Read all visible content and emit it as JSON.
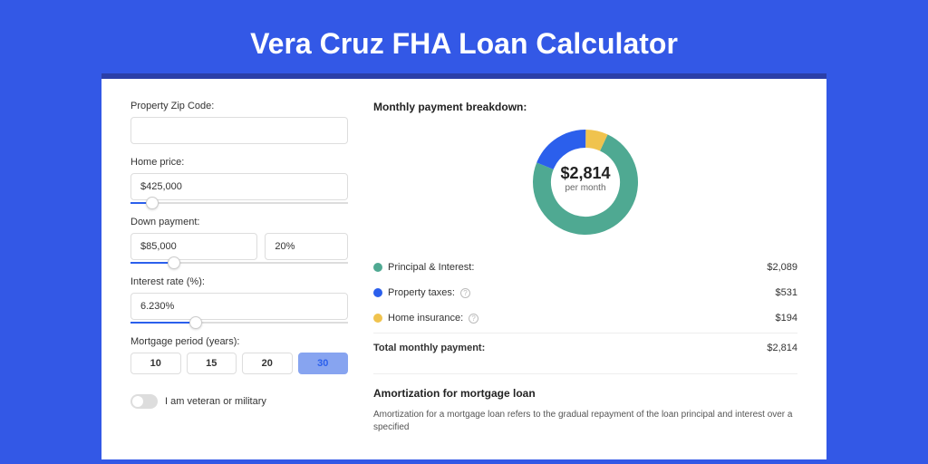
{
  "title": "Vera Cruz FHA Loan Calculator",
  "form": {
    "zip_label": "Property Zip Code:",
    "zip_value": "",
    "home_price_label": "Home price:",
    "home_price_value": "$425,000",
    "home_price_slider_pct": 10,
    "down_payment_label": "Down payment:",
    "down_payment_value": "$85,000",
    "down_payment_pct_value": "20%",
    "down_payment_slider_pct": 20,
    "interest_label": "Interest rate (%):",
    "interest_value": "6.230%",
    "interest_slider_pct": 30,
    "period_label": "Mortgage period (years):",
    "periods": [
      "10",
      "15",
      "20",
      "30"
    ],
    "period_active_index": 3,
    "veteran_label": "I am veteran or military",
    "veteran_on": false
  },
  "breakdown": {
    "title": "Monthly payment breakdown:",
    "center_amount": "$2,814",
    "center_sub": "per month",
    "slices": [
      {
        "label": "Principal & Interest:",
        "value": "$2,089",
        "color": "#4fa992",
        "pct": 74,
        "help": false
      },
      {
        "label": "Property taxes:",
        "value": "$531",
        "color": "#2b5fec",
        "pct": 19,
        "help": true
      },
      {
        "label": "Home insurance:",
        "value": "$194",
        "color": "#f0c34e",
        "pct": 7,
        "help": true
      }
    ],
    "total_label": "Total monthly payment:",
    "total_value": "$2,814"
  },
  "amortization": {
    "title": "Amortization for mortgage loan",
    "text": "Amortization for a mortgage loan refers to the gradual repayment of the loan principal and interest over a specified"
  },
  "chart": {
    "type": "donut",
    "radius": 58,
    "inner_radius": 38,
    "stroke_width": 20,
    "background": "#ffffff"
  }
}
